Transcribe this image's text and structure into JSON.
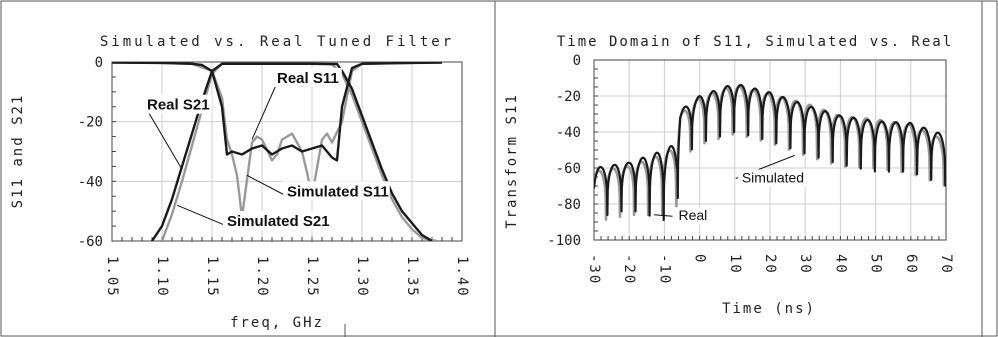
{
  "chart_data": [
    {
      "type": "line",
      "title": "Simulated vs. Real Tuned Filter",
      "xlabel": "freq, GHz",
      "ylabel": "S11 and S21",
      "xlim": [
        1.05,
        1.4
      ],
      "ylim": [
        -60,
        0
      ],
      "x_ticks": [
        "1.05",
        "1.10",
        "1.15",
        "1.20",
        "1.25",
        "1.30",
        "1.35",
        "1.40"
      ],
      "y_ticks": [
        "0",
        "-20",
        "-40",
        "-60"
      ],
      "grid": true,
      "series": [
        {
          "name": "Real S21",
          "color": "#1a1a1a",
          "x": [
            1.09,
            1.1,
            1.11,
            1.12,
            1.13,
            1.14,
            1.15,
            1.16,
            1.2,
            1.25,
            1.275,
            1.28,
            1.29,
            1.3,
            1.31,
            1.32,
            1.33,
            1.34,
            1.35,
            1.36,
            1.37
          ],
          "y": [
            -60,
            -55,
            -46,
            -35,
            -24,
            -13,
            -3,
            -0.6,
            -0.6,
            -0.6,
            -0.7,
            -3,
            -9,
            -18,
            -27,
            -36,
            -44,
            -50,
            -54,
            -58,
            -60
          ]
        },
        {
          "name": "Simulated S21",
          "color": "#999999",
          "x": [
            1.1,
            1.11,
            1.12,
            1.13,
            1.14,
            1.15,
            1.16,
            1.2,
            1.25,
            1.27,
            1.28,
            1.29,
            1.3,
            1.31,
            1.32,
            1.33,
            1.34,
            1.35,
            1.36,
            1.375
          ],
          "y": [
            -60,
            -51,
            -40,
            -28,
            -16,
            -4,
            -0.6,
            -0.6,
            -0.6,
            -0.8,
            -4,
            -11,
            -20,
            -29,
            -38,
            -46,
            -52,
            -56,
            -59,
            -60
          ]
        },
        {
          "name": "Real S11",
          "color": "#1a1a1a",
          "x": [
            1.05,
            1.1,
            1.13,
            1.14,
            1.15,
            1.16,
            1.165,
            1.17,
            1.18,
            1.19,
            1.2,
            1.21,
            1.22,
            1.23,
            1.24,
            1.25,
            1.26,
            1.27,
            1.275,
            1.28,
            1.29,
            1.3,
            1.35,
            1.38
          ],
          "y": [
            -0.2,
            -0.3,
            -0.6,
            -1,
            -3,
            -15,
            -31,
            -30,
            -31,
            -29,
            -28,
            -31,
            -29,
            -28,
            -30,
            -29,
            -28,
            -32,
            -33,
            -15,
            -2,
            -0.6,
            -0.3,
            -0.2
          ]
        },
        {
          "name": "Simulated S11",
          "color": "#999999",
          "x": [
            1.05,
            1.1,
            1.13,
            1.15,
            1.16,
            1.165,
            1.17,
            1.175,
            1.18,
            1.19,
            1.195,
            1.2,
            1.21,
            1.215,
            1.22,
            1.23,
            1.24,
            1.245,
            1.25,
            1.26,
            1.265,
            1.27,
            1.28,
            1.29,
            1.3,
            1.35,
            1.38
          ],
          "y": [
            -0.2,
            -0.3,
            -0.6,
            -3,
            -12,
            -26,
            -31,
            -38,
            -52,
            -27,
            -25,
            -26,
            -33,
            -31,
            -26,
            -24,
            -30,
            -37,
            -45,
            -26,
            -24,
            -27,
            -20,
            -3,
            -0.6,
            -0.3,
            -0.2
          ]
        }
      ],
      "annotations": [
        {
          "text": "Real S11",
          "at": [
            1.215,
            -7
          ],
          "points_to": [
            1.19,
            -26
          ]
        },
        {
          "text": "Real S21",
          "at": [
            1.085,
            -16
          ],
          "points_to": [
            1.12,
            -36
          ]
        },
        {
          "text": "Simulated S11",
          "at": [
            1.225,
            -45
          ],
          "points_to": [
            1.185,
            -38
          ]
        },
        {
          "text": "Simulated S21",
          "at": [
            1.165,
            -55
          ],
          "points_to": [
            1.115,
            -48
          ]
        }
      ]
    },
    {
      "type": "line",
      "title": "Time Domain of S11, Simulated vs. Real",
      "xlabel": "Time (ns)",
      "ylabel": "Transform S11",
      "xlim": [
        -30,
        70
      ],
      "ylim": [
        -100,
        0
      ],
      "x_ticks": [
        "-30",
        "-20",
        "-10",
        "0",
        "10",
        "20",
        "30",
        "40",
        "50",
        "60",
        "70"
      ],
      "y_ticks": [
        "0",
        "-20",
        "-40",
        "-60",
        "-80",
        "-100"
      ],
      "grid": true,
      "series": [
        {
          "name": "Real",
          "color": "#1a1a1a",
          "envelope_x": [
            -30,
            -20,
            -10,
            -6.5,
            -5.5,
            0,
            10,
            20,
            30,
            40,
            50,
            60,
            70
          ],
          "envelope_y": [
            -60,
            -57,
            -50,
            -46,
            -28,
            -20,
            -13,
            -18,
            -25,
            -31,
            -34,
            -35,
            -42
          ],
          "null_depth_y": [
            -88,
            -83,
            -89,
            -86,
            -55,
            -46,
            -40,
            -45,
            -52,
            -58,
            -62,
            -62,
            -70
          ],
          "lobe_period_ns": 4
        },
        {
          "name": "Simulated",
          "color": "#999999",
          "envelope_x": [
            -30,
            -20,
            -10,
            -6.5,
            -5.5,
            0,
            10,
            20,
            30,
            40,
            50,
            60,
            70
          ],
          "envelope_y": [
            -62,
            -59,
            -52,
            -48,
            -30,
            -21,
            -14,
            -19,
            -24,
            -31,
            -33,
            -36,
            -45
          ],
          "null_depth_y": [
            -90,
            -86,
            -86,
            -84,
            -55,
            -47,
            -41,
            -46,
            -53,
            -59,
            -60,
            -63,
            -70
          ],
          "lobe_period_ns": 4
        }
      ],
      "annotations": [
        {
          "text": "Simulated",
          "at": [
            12,
            -68
          ],
          "points_to": [
            27,
            -53
          ]
        },
        {
          "text": "Real",
          "at": [
            -6,
            -89
          ],
          "points_to": [
            -13,
            -86
          ]
        }
      ]
    }
  ]
}
